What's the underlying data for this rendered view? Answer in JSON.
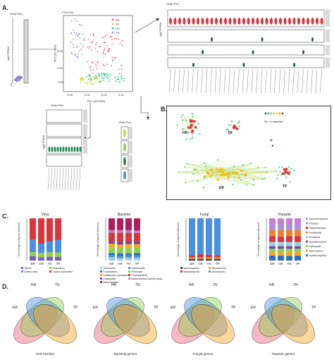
{
  "panels": {
    "a": "A.",
    "b": "B.",
    "c": "C.",
    "d": "D."
  },
  "violin_label": "Violin Plot",
  "pca_label": "PCA Plot",
  "pca": {
    "xlabel": "PC1 (30.43%)",
    "ylabel": "PC2 (11.13%)",
    "xticks": [
      "-0.05",
      "0.00",
      "0.05",
      "0.10"
    ],
    "yticks": [
      "0.05",
      "0.00",
      "-0.05"
    ],
    "legend": [
      {
        "name": "ER",
        "color": "#e8637a"
      },
      {
        "name": "TP",
        "color": "#c9d64a"
      },
      {
        "name": "HR",
        "color": "#2fc3a0"
      },
      {
        "name": "TN",
        "color": "#9d8fe0"
      }
    ]
  },
  "log_label": "log2 FPKM",
  "network": {
    "groups": [
      "HR",
      "TN",
      "ER",
      "TP"
    ],
    "legend_label": "No. of samples"
  },
  "charts_c": [
    {
      "title": "Virus",
      "ylabel": "Percentage of signals detected",
      "categories": [
        "ER",
        "HR",
        "TN",
        "TP"
      ],
      "series": [
        {
          "name": "Others",
          "color": "#7a5cc9",
          "values": [
            10,
            8,
            9,
            9
          ]
        },
        {
          "name": "Respiratory",
          "color": "#8fd14f",
          "values": [
            10,
            10,
            11,
            10
          ]
        },
        {
          "name": "Enteric virus",
          "color": "#4a90e2",
          "values": [
            30,
            22,
            25,
            30
          ]
        },
        {
          "name": "Cancer associated",
          "color": "#d9363e",
          "values": [
            50,
            60,
            55,
            51
          ]
        }
      ],
      "legend": [
        "Others",
        "Respiratory",
        "Enteric virus",
        "Cancer associated"
      ]
    },
    {
      "title": "Bacteria",
      "ylabel": "Percentage of signals detected",
      "categories": [
        "ER",
        "HR",
        "TN",
        "TP"
      ],
      "series": [
        {
          "name": "Tenericutes",
          "color": "#9ad0e8",
          "values": [
            8,
            6,
            7,
            7
          ]
        },
        {
          "name": "Spirochaetia",
          "color": "#4a90e2",
          "values": [
            5,
            5,
            5,
            5
          ]
        },
        {
          "name": "Fusobacteria",
          "color": "#2c6fbf",
          "values": [
            5,
            6,
            5,
            6
          ]
        },
        {
          "name": "Firmicutes",
          "color": "#8fd14f",
          "values": [
            14,
            13,
            14,
            13
          ]
        },
        {
          "name": "Deltaepsilon subdivisions",
          "color": "#f5a623",
          "values": [
            8,
            8,
            8,
            8
          ]
        },
        {
          "name": "Chlamydiae",
          "color": "#6f4a9e",
          "values": [
            6,
            6,
            6,
            6
          ]
        },
        {
          "name": "Proteobacteria",
          "color": "#d9363e",
          "values": [
            20,
            22,
            21,
            20
          ]
        },
        {
          "name": "Bacteroidetes/Chlorobi group",
          "color": "#c77fd1",
          "values": [
            6,
            6,
            6,
            6
          ]
        },
        {
          "name": "Actinobacteria",
          "color": "#b01e5a",
          "values": [
            28,
            28,
            28,
            29
          ]
        }
      ],
      "legend": [
        "Tenericutes",
        "Spirochaetia",
        "Fusobacteria",
        "Firmicutes",
        "Deltaepsilon subdivisions",
        "Proteobacteria",
        "Chlamydiae",
        "Bacteroidetes/Chlorobi group",
        "Actinobacteria"
      ]
    },
    {
      "title": "Fungi",
      "ylabel": "Percentage of signals detected",
      "categories": [
        "ER",
        "HR",
        "TN",
        "TP"
      ],
      "series": [
        {
          "name": "Macromycetes",
          "color": "#3b2f8f",
          "values": [
            4,
            4,
            4,
            4
          ]
        },
        {
          "name": "Microsporidia",
          "color": "#f5a623",
          "values": [
            3,
            3,
            3,
            3
          ]
        },
        {
          "name": "Basidiomycota",
          "color": "#d9363e",
          "values": [
            6,
            8,
            7,
            6
          ]
        },
        {
          "name": "Ascomycota",
          "color": "#4a90e2",
          "values": [
            87,
            85,
            86,
            87
          ]
        }
      ],
      "legend": [
        "Macromycetes",
        "Microsporidia",
        "Basidiomycota",
        "Ascomycota"
      ]
    },
    {
      "title": "Parasite",
      "ylabel": "Percentage of signals detected",
      "categories": [
        "ER",
        "HR",
        "TN",
        "TP"
      ],
      "series": [
        {
          "name": "Acanthocephala",
          "color": "#2c6fbf",
          "values": [
            12,
            12,
            11,
            12
          ]
        },
        {
          "name": "Apicomplexa",
          "color": "#f5a623",
          "values": [
            8,
            8,
            9,
            8
          ]
        },
        {
          "name": "Arthropoda",
          "color": "#8fd14f",
          "values": [
            8,
            8,
            8,
            8
          ]
        },
        {
          "name": "Ascaridomorpha",
          "color": "#6f4a9e",
          "values": [
            6,
            6,
            6,
            6
          ]
        },
        {
          "name": "Nematoda",
          "color": "#9ad0e8",
          "values": [
            10,
            10,
            10,
            10
          ]
        },
        {
          "name": "Platyhelminthes",
          "color": "#d9363e",
          "values": [
            14,
            13,
            14,
            14
          ]
        },
        {
          "name": "Parabasalia",
          "color": "#e8852c",
          "values": [
            14,
            15,
            14,
            14
          ]
        },
        {
          "name": "Protozoa",
          "color": "#ab8fd9",
          "values": [
            14,
            14,
            14,
            14
          ]
        },
        {
          "name": "Saccharomycetes",
          "color": "#c77fd1",
          "values": [
            14,
            14,
            14,
            14
          ]
        }
      ],
      "legend": [
        "Saccharomycetes",
        "Protozoa",
        "Platyhelminthes",
        "Parabasalia",
        "Nematoda",
        "Ascaridomorpha",
        "Arthropoda",
        "Apicomplexa",
        "Acanthocephala"
      ]
    }
  ],
  "venns": [
    {
      "caption": "Viral Families",
      "labels": [
        "ER",
        "HR",
        "TN",
        "TP"
      ]
    },
    {
      "caption": "Bacterial genera",
      "labels": [
        "ER",
        "HR",
        "TN",
        "TP"
      ]
    },
    {
      "caption": "Fungal genera",
      "labels": [
        "ER",
        "HR",
        "TN",
        "TP"
      ]
    },
    {
      "caption": "Parasitic genera",
      "labels": [
        "ER",
        "HR",
        "TN",
        "TP"
      ]
    }
  ],
  "venn_colors": [
    "#e8637a",
    "#8fd14f",
    "#4a90e2",
    "#f5a623"
  ]
}
